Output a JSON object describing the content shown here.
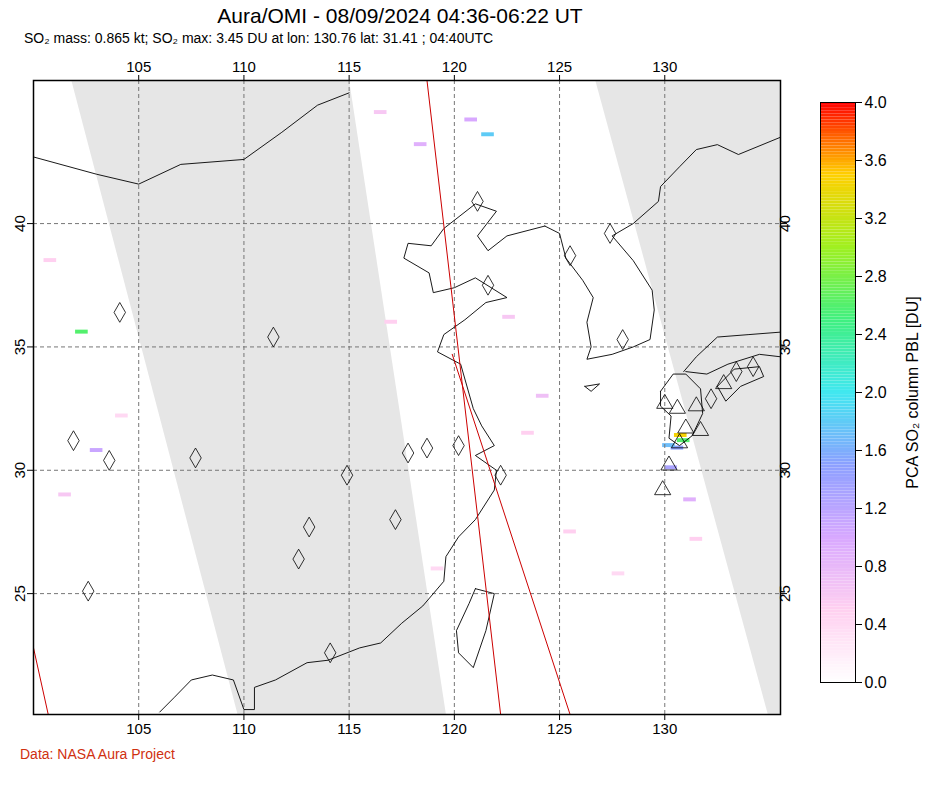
{
  "chart_data": {
    "type": "map",
    "title": "Aura/OMI - 08/09/2024 04:36-06:22 UT",
    "subtitle": "SO₂ mass: 0.865 kt; SO₂ max: 3.45 DU at lon: 130.76 lat: 31.41 ; 04:40UTC",
    "caption": "Data: NASA Aura Project",
    "xlim": [
      100,
      135.5
    ],
    "xticks": [
      105,
      110,
      115,
      120,
      125,
      130
    ],
    "ylim": [
      20.1,
      45.8
    ],
    "yticks": [
      25,
      30,
      35,
      40
    ],
    "grid": true,
    "colorbar": {
      "label": "PCA SO₂ column PBL [DU]",
      "range": [
        0,
        4
      ],
      "colors": [
        "#ffffff",
        "#ffd0f0",
        "#d8a8ff",
        "#8ca0ff",
        "#40e8f0",
        "#40f080",
        "#a0f020",
        "#ffd000",
        "#ff0000"
      ],
      "ticks": [
        {
          "value": 0,
          "label": "0.0"
        },
        {
          "value": 0.4,
          "label": "0.4"
        },
        {
          "value": 0.8,
          "label": "0.8"
        },
        {
          "value": 1.2,
          "label": "1.2"
        },
        {
          "value": 1.6,
          "label": "1.6"
        },
        {
          "value": 2.0,
          "label": "2.0"
        },
        {
          "value": 2.4,
          "label": "2.4"
        },
        {
          "value": 2.8,
          "label": "2.8"
        },
        {
          "value": 3.2,
          "label": "3.2"
        },
        {
          "value": 3.6,
          "label": "3.6"
        },
        {
          "value": 4.0,
          "label": "4.0"
        }
      ]
    },
    "no_data_regions": [
      [
        [
          101.8,
          45.8
        ],
        [
          115.0,
          45.8
        ],
        [
          119.6,
          20.1
        ],
        [
          109.7,
          20.1
        ]
      ],
      [
        [
          126.7,
          45.8
        ],
        [
          135.5,
          45.8
        ],
        [
          135.5,
          20.1
        ],
        [
          134.9,
          20.1
        ]
      ]
    ],
    "orbit_lines": [
      [
        [
          118.7,
          45.8
        ],
        [
          122.2,
          20.1
        ]
      ],
      [
        [
          119.9,
          34.7
        ],
        [
          125.5,
          20.1
        ]
      ],
      [
        [
          100.0,
          22.8
        ],
        [
          100.7,
          20.1
        ]
      ]
    ],
    "coastlines": [
      [
        [
          106.0,
          20.2
        ],
        [
          106.7,
          20.8
        ],
        [
          107.5,
          21.5
        ],
        [
          108.5,
          21.7
        ],
        [
          109.5,
          21.5
        ],
        [
          110.0,
          20.3
        ],
        [
          110.5,
          20.3
        ],
        [
          110.5,
          21.2
        ],
        [
          111.5,
          21.5
        ],
        [
          113.0,
          22.2
        ],
        [
          114.0,
          22.3
        ],
        [
          115.5,
          22.8
        ],
        [
          116.5,
          23.0
        ],
        [
          117.5,
          23.8
        ],
        [
          118.5,
          24.5
        ],
        [
          119.5,
          25.5
        ],
        [
          119.6,
          26.5
        ],
        [
          120.2,
          27.3
        ],
        [
          121.0,
          28.0
        ],
        [
          121.9,
          29.2
        ],
        [
          122.0,
          30.0
        ],
        [
          121.0,
          30.6
        ],
        [
          121.9,
          31.0
        ],
        [
          121.3,
          31.8
        ],
        [
          120.9,
          32.5
        ],
        [
          120.3,
          34.3
        ],
        [
          119.2,
          34.8
        ],
        [
          119.5,
          35.5
        ],
        [
          120.5,
          36.1
        ],
        [
          121.5,
          36.8
        ],
        [
          122.5,
          37.0
        ],
        [
          121.0,
          37.8
        ],
        [
          120.0,
          37.4
        ],
        [
          119.0,
          37.2
        ],
        [
          118.8,
          38.0
        ],
        [
          117.6,
          38.6
        ],
        [
          117.8,
          39.2
        ],
        [
          118.9,
          39.1
        ],
        [
          119.5,
          39.8
        ],
        [
          121.0,
          40.8
        ],
        [
          122.0,
          40.5
        ],
        [
          121.1,
          39.5
        ],
        [
          121.6,
          38.9
        ],
        [
          122.5,
          39.5
        ],
        [
          124.3,
          39.9
        ]
      ],
      [
        [
          124.3,
          39.9
        ],
        [
          125.0,
          39.6
        ],
        [
          125.3,
          38.6
        ],
        [
          126.1,
          37.7
        ],
        [
          126.6,
          37.0
        ],
        [
          126.3,
          36.0
        ],
        [
          126.5,
          35.0
        ],
        [
          126.3,
          34.5
        ],
        [
          127.5,
          34.7
        ],
        [
          128.5,
          35.0
        ],
        [
          129.3,
          35.3
        ],
        [
          129.5,
          36.5
        ],
        [
          129.4,
          37.3
        ],
        [
          128.5,
          38.5
        ],
        [
          127.5,
          39.5
        ],
        [
          128.5,
          40.0
        ],
        [
          129.7,
          40.9
        ],
        [
          129.8,
          41.5
        ],
        [
          130.7,
          42.3
        ],
        [
          131.5,
          43.0
        ],
        [
          132.5,
          43.2
        ],
        [
          133.5,
          42.8
        ],
        [
          135.5,
          43.5
        ]
      ],
      [
        [
          129.8,
          33.2
        ],
        [
          130.4,
          33.9
        ],
        [
          131.0,
          33.9
        ],
        [
          131.7,
          33.3
        ],
        [
          131.8,
          32.3
        ],
        [
          131.3,
          31.4
        ],
        [
          130.7,
          31.0
        ],
        [
          130.2,
          31.3
        ],
        [
          130.3,
          32.2
        ],
        [
          129.8,
          32.6
        ],
        [
          129.8,
          33.2
        ]
      ],
      [
        [
          130.9,
          34.0
        ],
        [
          131.5,
          34.6
        ],
        [
          132.5,
          35.4
        ],
        [
          134.0,
          35.5
        ],
        [
          135.5,
          35.6
        ]
      ],
      [
        [
          131.0,
          34.0
        ],
        [
          132.0,
          33.9
        ],
        [
          133.0,
          34.3
        ],
        [
          134.5,
          34.7
        ],
        [
          135.5,
          34.6
        ]
      ],
      [
        [
          132.5,
          33.4
        ],
        [
          132.9,
          32.8
        ],
        [
          133.6,
          33.4
        ],
        [
          134.7,
          33.8
        ],
        [
          134.5,
          34.2
        ],
        [
          133.3,
          34.1
        ],
        [
          132.5,
          33.4
        ]
      ],
      [
        [
          121.0,
          25.2
        ],
        [
          121.9,
          25.0
        ],
        [
          121.5,
          23.5
        ],
        [
          120.9,
          22.0
        ],
        [
          120.2,
          22.6
        ],
        [
          120.1,
          23.5
        ],
        [
          120.7,
          24.6
        ],
        [
          121.0,
          25.2
        ]
      ],
      [
        [
          126.2,
          33.4
        ],
        [
          126.9,
          33.5
        ],
        [
          126.5,
          33.2
        ],
        [
          126.2,
          33.4
        ]
      ],
      [
        [
          100.0,
          42.7
        ],
        [
          103.0,
          42.0
        ],
        [
          105.0,
          41.6
        ],
        [
          107.0,
          42.4
        ],
        [
          110.0,
          42.6
        ],
        [
          111.8,
          43.7
        ],
        [
          113.5,
          44.8
        ],
        [
          115.0,
          45.3
        ]
      ]
    ],
    "volcanoes": [
      [
        130.6,
        32.5
      ],
      [
        131.0,
        31.7
      ],
      [
        130.7,
        31.1
      ],
      [
        130.2,
        30.2
      ],
      [
        129.9,
        29.2
      ],
      [
        130.0,
        32.7
      ],
      [
        131.5,
        32.6
      ],
      [
        132.8,
        33.5
      ],
      [
        131.7,
        31.6
      ]
    ],
    "sources": [
      [
        104.1,
        36.4
      ],
      [
        111.4,
        35.4
      ],
      [
        101.9,
        31.2
      ],
      [
        103.6,
        30.4
      ],
      [
        107.7,
        30.5
      ],
      [
        102.6,
        25.1
      ],
      [
        121.1,
        40.9
      ],
      [
        127.4,
        39.6
      ],
      [
        125.5,
        38.7
      ],
      [
        121.6,
        37.5
      ],
      [
        128.0,
        35.3
      ],
      [
        114.9,
        29.8
      ],
      [
        117.8,
        30.7
      ],
      [
        118.7,
        30.9
      ],
      [
        117.2,
        28.0
      ],
      [
        113.1,
        27.7
      ],
      [
        112.6,
        26.4
      ],
      [
        120.2,
        31.0
      ],
      [
        122.2,
        29.8
      ],
      [
        133.4,
        34.0
      ],
      [
        134.2,
        34.2
      ],
      [
        132.2,
        32.9
      ],
      [
        114.1,
        22.6
      ]
    ],
    "pixels": [
      {
        "lon": 130.76,
        "lat": 31.41,
        "value": 3.45
      },
      {
        "lon": 130.9,
        "lat": 31.2,
        "value": 2.6
      },
      {
        "lon": 130.6,
        "lat": 30.9,
        "value": 1.5
      },
      {
        "lon": 130.3,
        "lat": 30.1,
        "value": 1.3
      },
      {
        "lon": 130.2,
        "lat": 31.0,
        "value": 1.7
      },
      {
        "lon": 131.2,
        "lat": 28.8,
        "value": 0.9
      },
      {
        "lon": 102.3,
        "lat": 35.6,
        "value": 2.6
      },
      {
        "lon": 103.0,
        "lat": 30.8,
        "value": 1.1
      },
      {
        "lon": 121.6,
        "lat": 43.6,
        "value": 1.8
      },
      {
        "lon": 120.8,
        "lat": 44.2,
        "value": 1.0
      },
      {
        "lon": 118.4,
        "lat": 43.2,
        "value": 0.9
      },
      {
        "lon": 116.5,
        "lat": 44.5,
        "value": 0.6
      },
      {
        "lon": 122.6,
        "lat": 36.2,
        "value": 0.6
      },
      {
        "lon": 123.5,
        "lat": 31.5,
        "value": 0.5
      },
      {
        "lon": 124.2,
        "lat": 33.0,
        "value": 0.7
      },
      {
        "lon": 125.5,
        "lat": 27.5,
        "value": 0.5
      },
      {
        "lon": 127.8,
        "lat": 25.8,
        "value": 0.4
      },
      {
        "lon": 100.8,
        "lat": 38.5,
        "value": 0.5
      },
      {
        "lon": 101.5,
        "lat": 29.0,
        "value": 0.6
      },
      {
        "lon": 104.2,
        "lat": 32.2,
        "value": 0.4
      },
      {
        "lon": 131.5,
        "lat": 27.2,
        "value": 0.5
      },
      {
        "lon": 117.0,
        "lat": 36.0,
        "value": 0.5
      },
      {
        "lon": 119.2,
        "lat": 26.0,
        "value": 0.4
      }
    ]
  }
}
